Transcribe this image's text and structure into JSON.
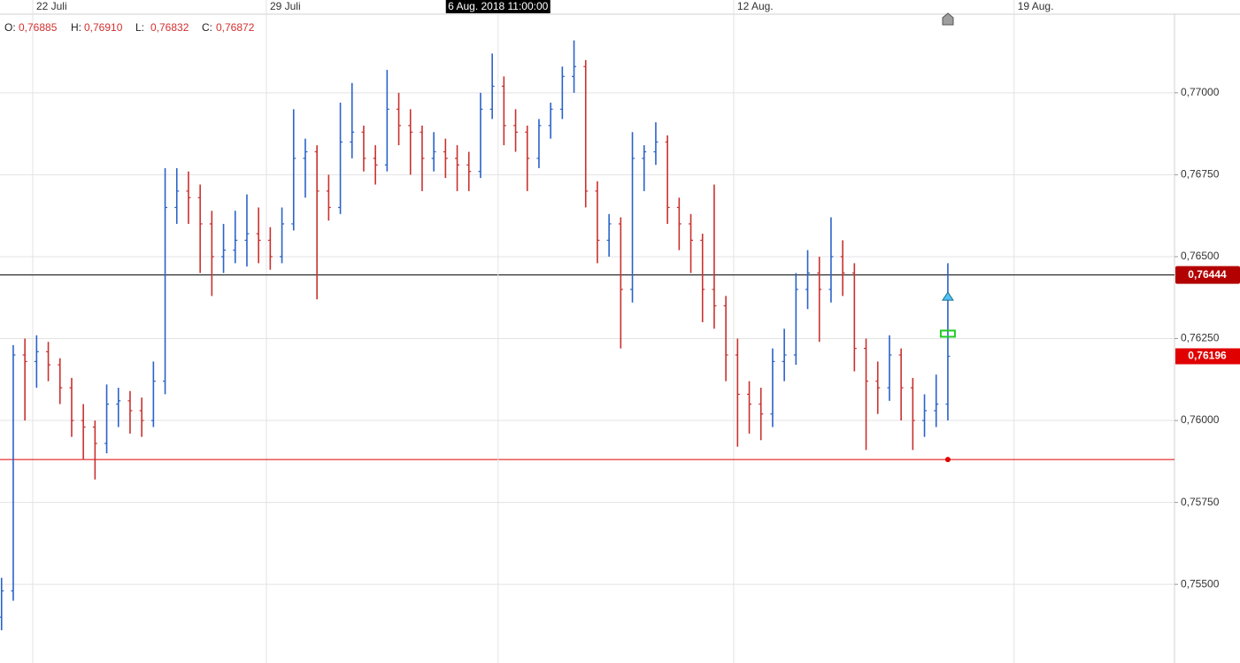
{
  "chart_data": {
    "type": "ohlc",
    "x": [
      -16,
      -10,
      -4,
      2,
      8,
      14,
      20,
      26,
      32,
      38,
      44,
      50,
      56,
      62,
      68,
      74,
      80,
      86,
      92,
      98,
      104,
      110,
      116,
      122,
      128,
      134,
      140,
      146,
      152,
      158,
      164,
      170,
      176,
      182,
      188,
      194,
      200,
      206,
      212,
      218,
      224,
      230,
      236,
      242,
      248,
      254,
      260,
      266,
      272,
      278,
      284,
      290,
      296,
      302,
      308,
      314,
      320,
      326,
      332,
      338,
      344,
      350,
      356,
      362,
      368,
      374,
      380,
      386,
      392,
      398,
      404,
      410,
      416,
      422,
      428,
      434,
      440,
      446,
      452,
      458,
      464,
      470
    ],
    "open": [
      0.754,
      0.7548,
      0.762,
      0.7618,
      0.7621,
      0.7617,
      0.761,
      0.76,
      0.7598,
      0.7593,
      0.7605,
      0.7606,
      0.7603,
      0.76,
      0.7612,
      0.7665,
      0.767,
      0.7668,
      0.766,
      0.765,
      0.7652,
      0.7655,
      0.7657,
      0.7655,
      0.765,
      0.766,
      0.768,
      0.7682,
      0.767,
      0.7665,
      0.7685,
      0.7688,
      0.768,
      0.7678,
      0.7695,
      0.769,
      0.7688,
      0.768,
      0.7682,
      0.768,
      0.7678,
      0.7676,
      0.7695,
      0.7702,
      0.769,
      0.7688,
      0.768,
      0.769,
      0.7695,
      0.7705,
      0.7708,
      0.767,
      0.7655,
      0.766,
      0.764,
      0.768,
      0.7682,
      0.7685,
      0.7665,
      0.766,
      0.7655,
      0.764,
      0.7635,
      0.762,
      0.7608,
      0.7605,
      0.7602,
      0.7618,
      0.762,
      0.764,
      0.7645,
      0.764,
      0.765,
      0.7645,
      0.7622,
      0.7612,
      0.761,
      0.762,
      0.761,
      0.76,
      0.7603,
      0.7605
    ],
    "high": [
      0.7552,
      0.7623,
      0.7625,
      0.7626,
      0.7624,
      0.7619,
      0.7613,
      0.7605,
      0.76,
      0.7611,
      0.761,
      0.7609,
      0.7607,
      0.7618,
      0.7677,
      0.7677,
      0.7676,
      0.7672,
      0.7664,
      0.766,
      0.7664,
      0.7669,
      0.7665,
      0.7659,
      0.7665,
      0.7695,
      0.7686,
      0.7684,
      0.7675,
      0.7697,
      0.7703,
      0.769,
      0.7684,
      0.7707,
      0.77,
      0.7695,
      0.769,
      0.7688,
      0.7686,
      0.7684,
      0.7682,
      0.77,
      0.7712,
      0.7705,
      0.7695,
      0.769,
      0.7692,
      0.7697,
      0.7708,
      0.7716,
      0.771,
      0.7673,
      0.7663,
      0.7662,
      0.7688,
      0.7684,
      0.7691,
      0.7687,
      0.7668,
      0.7663,
      0.7657,
      0.7672,
      0.7638,
      0.7625,
      0.7612,
      0.761,
      0.7622,
      0.7628,
      0.7645,
      0.7652,
      0.765,
      0.7662,
      0.7655,
      0.7648,
      0.7625,
      0.7618,
      0.7626,
      0.7622,
      0.7613,
      0.7608,
      0.7614,
      0.7648
    ],
    "low": [
      0.7536,
      0.7545,
      0.76,
      0.761,
      0.7612,
      0.7605,
      0.7595,
      0.7588,
      0.7582,
      0.759,
      0.7598,
      0.7596,
      0.7595,
      0.7598,
      0.7608,
      0.766,
      0.766,
      0.7645,
      0.7638,
      0.7645,
      0.7648,
      0.7647,
      0.7648,
      0.7646,
      0.7648,
      0.7658,
      0.7668,
      0.7637,
      0.7661,
      0.7663,
      0.768,
      0.7676,
      0.7672,
      0.7676,
      0.7684,
      0.7675,
      0.767,
      0.7676,
      0.7674,
      0.767,
      0.767,
      0.7674,
      0.7692,
      0.7684,
      0.7682,
      0.767,
      0.7677,
      0.7686,
      0.7692,
      0.77,
      0.7665,
      0.7648,
      0.765,
      0.7622,
      0.7636,
      0.767,
      0.7678,
      0.766,
      0.7652,
      0.7645,
      0.763,
      0.7628,
      0.7612,
      0.7592,
      0.7596,
      0.7594,
      0.7598,
      0.7612,
      0.7617,
      0.7634,
      0.7624,
      0.7636,
      0.7638,
      0.7615,
      0.7591,
      0.7602,
      0.7606,
      0.76,
      0.7591,
      0.7595,
      0.7598,
      0.76
    ],
    "close": [
      0.7548,
      0.762,
      0.7618,
      0.7621,
      0.7617,
      0.761,
      0.76,
      0.7598,
      0.7593,
      0.7605,
      0.7606,
      0.7603,
      0.76,
      0.7612,
      0.7665,
      0.767,
      0.7668,
      0.766,
      0.765,
      0.7652,
      0.7655,
      0.7657,
      0.7655,
      0.765,
      0.766,
      0.768,
      0.7682,
      0.767,
      0.7665,
      0.7685,
      0.7688,
      0.768,
      0.7678,
      0.7695,
      0.769,
      0.7688,
      0.768,
      0.7682,
      0.768,
      0.7678,
      0.7676,
      0.7695,
      0.7702,
      0.769,
      0.7688,
      0.768,
      0.769,
      0.7695,
      0.7705,
      0.7708,
      0.767,
      0.7655,
      0.766,
      0.764,
      0.768,
      0.7682,
      0.7685,
      0.7665,
      0.766,
      0.7655,
      0.764,
      0.7635,
      0.762,
      0.7608,
      0.7605,
      0.7602,
      0.7618,
      0.762,
      0.764,
      0.7645,
      0.764,
      0.765,
      0.7645,
      0.7622,
      0.7612,
      0.761,
      0.762,
      0.761,
      0.76,
      0.7603,
      0.7605,
      0.76196
    ],
    "up_color": "#2a62c9",
    "down_color": "#c8312f",
    "xlim": [
      -16.8,
      586.4
    ],
    "ylim": [
      0.7526,
      0.7724
    ],
    "xticks": [
      {
        "value": 0,
        "label": "22 Juli"
      },
      {
        "value": 120,
        "label": "29 Juli"
      },
      {
        "value": 360,
        "label": "12 Aug."
      },
      {
        "value": 504,
        "label": "19 Aug."
      }
    ],
    "yticks": [
      {
        "value": 0.755,
        "label": "0,75500"
      },
      {
        "value": 0.7575,
        "label": "0,75750"
      },
      {
        "value": 0.76,
        "label": "0,76000"
      },
      {
        "value": 0.7625,
        "label": "0,76250"
      },
      {
        "value": 0.765,
        "label": "0,76500"
      },
      {
        "value": 0.7675,
        "label": "0,76750"
      },
      {
        "value": 0.77,
        "label": "0,77000"
      }
    ],
    "grid": true,
    "crosshair": {
      "x": 239,
      "label": "6 Aug. 2018 11:00:00"
    },
    "readout": [
      {
        "label": "O:",
        "value": "0,76885"
      },
      {
        "label": "H:",
        "value": "0,76910"
      },
      {
        "label": "L:",
        "value": "0,76832"
      },
      {
        "label": "C:",
        "value": "0,76872"
      }
    ],
    "price_lines": [
      {
        "value": 0.76444,
        "label": "0,76444",
        "color": "#000000",
        "label_color": "#b30000"
      },
      {
        "value": 0.75881,
        "color": "#e00000"
      }
    ],
    "last_price": {
      "value": 0.76196,
      "label": "0,76196",
      "color": "#e00000"
    },
    "markers": [
      {
        "shape": "triangle",
        "x": 470,
        "y": 0.76378,
        "color": "#4fc3f7"
      },
      {
        "shape": "rect",
        "x": 470,
        "y": 0.76265,
        "color": "#22cc22"
      },
      {
        "shape": "dot",
        "x": 470,
        "y": 0.75881,
        "color": "#e00000"
      }
    ]
  }
}
